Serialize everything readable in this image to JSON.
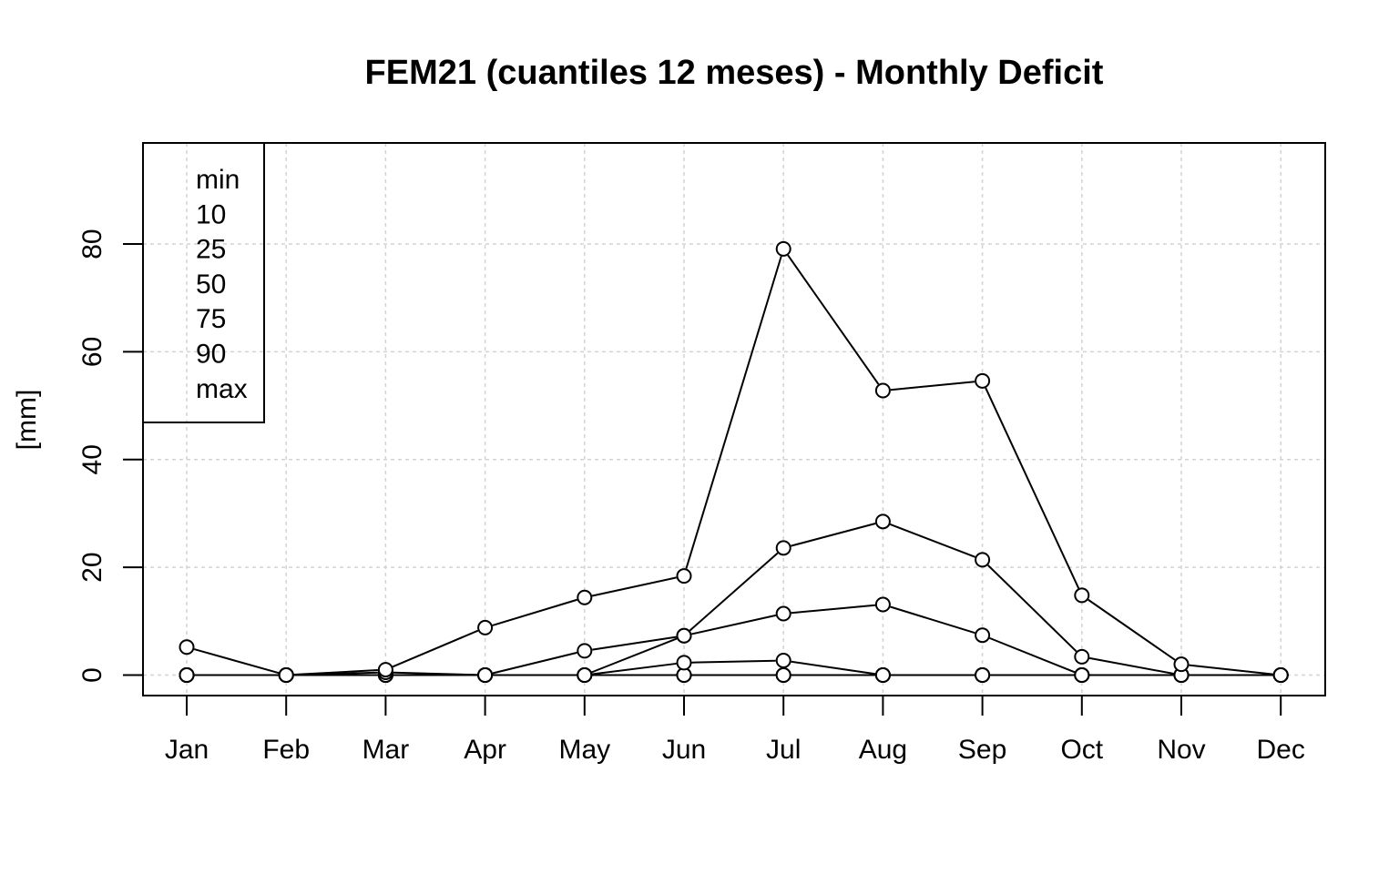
{
  "chart_data": {
    "type": "line",
    "title": "FEM21 (cuantiles 12 meses) - Monthly Deficit",
    "xlabel": "",
    "ylabel": "[mm]",
    "ylim": [
      -4,
      98
    ],
    "yticks": [
      0,
      20,
      40,
      60,
      80
    ],
    "grid": true,
    "legend_position": "top-left",
    "legend_entries": [
      "min",
      "10",
      "25",
      "50",
      "75",
      "90",
      "max"
    ],
    "categories": [
      "Jan",
      "Feb",
      "Mar",
      "Apr",
      "May",
      "Jun",
      "Jul",
      "Aug",
      "Sep",
      "Oct",
      "Nov",
      "Dec"
    ],
    "series": [
      {
        "values": [
          0,
          0,
          0,
          0,
          0,
          0,
          0,
          0,
          0,
          0,
          0,
          0
        ]
      },
      {
        "values": [
          0,
          0,
          0,
          0,
          0,
          0,
          0,
          0,
          0,
          0,
          0,
          0
        ]
      },
      {
        "values": [
          0,
          0,
          0,
          0,
          0,
          0,
          0,
          0,
          0,
          0,
          0,
          0
        ]
      },
      {
        "values": [
          0,
          0,
          0,
          0,
          0,
          2.3,
          2.7,
          0,
          0,
          0,
          0,
          0
        ]
      },
      {
        "values": [
          0,
          0,
          0,
          0,
          4.5,
          7.3,
          11.4,
          13.1,
          7.4,
          0,
          0,
          0
        ]
      },
      {
        "values": [
          0,
          0,
          0.5,
          0,
          0,
          7.3,
          23.6,
          28.5,
          21.4,
          3.4,
          0,
          0
        ]
      },
      {
        "values": [
          5.2,
          0,
          1.0,
          8.8,
          14.4,
          18.4,
          79.1,
          52.8,
          54.6,
          14.8,
          2.0,
          0
        ]
      }
    ]
  }
}
